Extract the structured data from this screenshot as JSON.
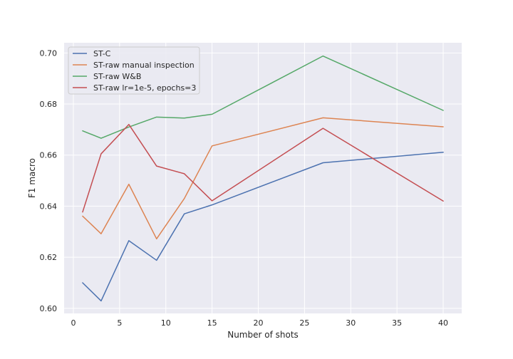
{
  "chart_data": {
    "type": "line",
    "title": "",
    "xlabel": "Number of shots",
    "ylabel": "F1 macro",
    "xlim": [
      -1.0,
      42.0
    ],
    "ylim": [
      0.598,
      0.704
    ],
    "xticks": [
      0,
      5,
      10,
      15,
      20,
      25,
      30,
      35,
      40
    ],
    "yticks": [
      0.6,
      0.62,
      0.64,
      0.66,
      0.68,
      0.7
    ],
    "ytick_labels": [
      "0.60",
      "0.62",
      "0.64",
      "0.66",
      "0.68",
      "0.70"
    ],
    "grid": true,
    "legend_position": "top-left",
    "x": [
      1,
      3,
      6,
      9,
      12,
      15,
      27,
      40
    ],
    "series": [
      {
        "name": "ST-C",
        "color": "#4c72b0",
        "values": [
          0.61,
          0.6029,
          0.6265,
          0.6188,
          0.637,
          0.6405,
          0.657,
          0.6611
        ]
      },
      {
        "name": "ST-raw manual inspection",
        "color": "#dd8452",
        "values": [
          0.6361,
          0.6292,
          0.6486,
          0.6272,
          0.643,
          0.6636,
          0.6746,
          0.6711
        ]
      },
      {
        "name": "ST-raw W&B",
        "color": "#55a868",
        "values": [
          0.6695,
          0.6666,
          0.671,
          0.6749,
          0.6745,
          0.676,
          0.6988,
          0.6775
        ]
      },
      {
        "name": "ST-raw lr=1e-5, epochs=3",
        "color": "#c44e52",
        "values": [
          0.6377,
          0.6605,
          0.672,
          0.6557,
          0.6527,
          0.6421,
          0.6705,
          0.642
        ]
      }
    ]
  }
}
